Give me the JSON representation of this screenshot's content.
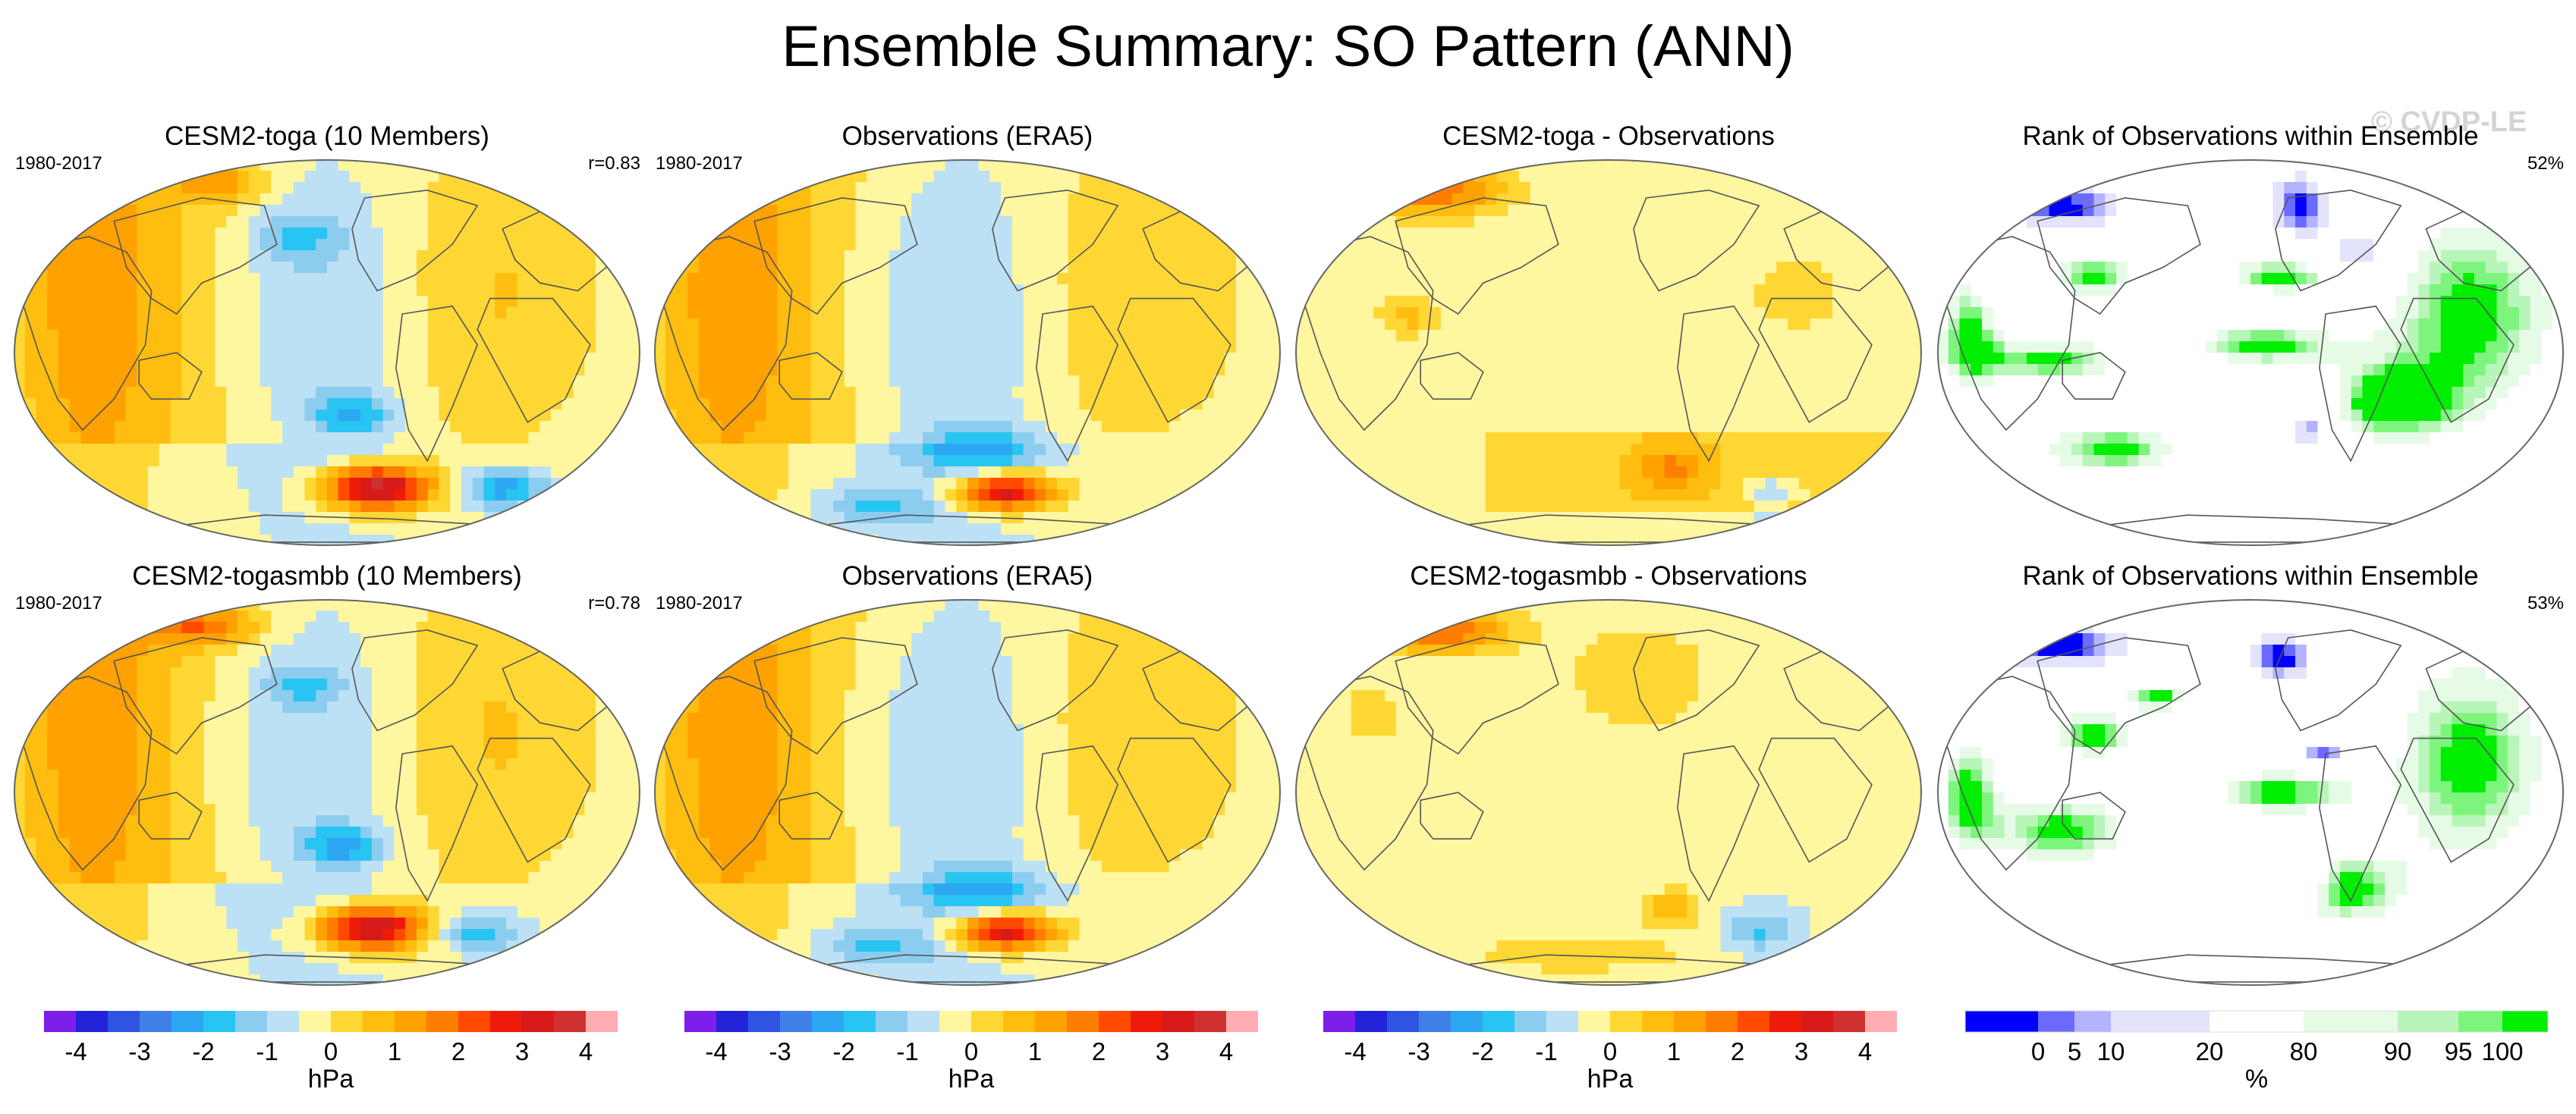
{
  "page": {
    "title": "Ensemble Summary: SO Pattern (ANN)",
    "watermark": "© CVDP-LE"
  },
  "colors": {
    "diverging": [
      "#7c1fe8",
      "#2323d9",
      "#2d55e2",
      "#3f80e8",
      "#2ea7f2",
      "#28c4f2",
      "#8ccdef",
      "#bde1f4",
      "#fff6a0",
      "#ffd734",
      "#ffbd0f",
      "#ffa100",
      "#ff7d00",
      "#ff4a00",
      "#ee1b0b",
      "#d71a1a",
      "#cf3131",
      "#ffadb2"
    ],
    "rank": [
      "#0000ff",
      "#6b6bff",
      "#b3b3ff",
      "#e3e3fb",
      "#ffffff",
      "#e6fbe6",
      "#b8f5b8",
      "#7df57d",
      "#00ee00"
    ],
    "land_outline": "#555555"
  },
  "chart_data": [
    {
      "type": "heatmap",
      "title": "CESM2-toga (10 Members)",
      "period": "1980-2017",
      "stat": "r=0.83",
      "field": "model1"
    },
    {
      "type": "heatmap",
      "title": "Observations (ERA5)",
      "period": "1980-2017",
      "stat": "",
      "field": "obs"
    },
    {
      "type": "heatmap",
      "title": "CESM2-toga - Observations",
      "period": "",
      "stat": "",
      "field": "diff1"
    },
    {
      "type": "heatmap",
      "title": "Rank of Observations within Ensemble",
      "period": "",
      "stat": "52%",
      "field": "rank1"
    },
    {
      "type": "heatmap",
      "title": "CESM2-togasmbb (10 Members)",
      "period": "1980-2017",
      "stat": "r=0.78",
      "field": "model2"
    },
    {
      "type": "heatmap",
      "title": "Observations (ERA5)",
      "period": "1980-2017",
      "stat": "",
      "field": "obs"
    },
    {
      "type": "heatmap",
      "title": "CESM2-togasmbb - Observations",
      "period": "",
      "stat": "",
      "field": "diff2"
    },
    {
      "type": "heatmap",
      "title": "Rank of Observations within Ensemble",
      "period": "",
      "stat": "53%",
      "field": "rank2"
    }
  ],
  "colorbars": [
    {
      "unit": "hPa",
      "labels": [
        "-4",
        "-3",
        "-2",
        "-1",
        "0",
        "1",
        "2",
        "3",
        "4"
      ],
      "kind": "diverging"
    },
    {
      "unit": "hPa",
      "labels": [
        "-4",
        "-3",
        "-2",
        "-1",
        "0",
        "1",
        "2",
        "3",
        "4"
      ],
      "kind": "diverging"
    },
    {
      "unit": "hPa",
      "labels": [
        "-4",
        "-3",
        "-2",
        "-1",
        "0",
        "1",
        "2",
        "3",
        "4"
      ],
      "kind": "diverging"
    },
    {
      "unit": "%",
      "labels": [
        "0",
        "5",
        "10",
        "20",
        "80",
        "90",
        "95",
        "100"
      ],
      "kind": "rank"
    }
  ]
}
